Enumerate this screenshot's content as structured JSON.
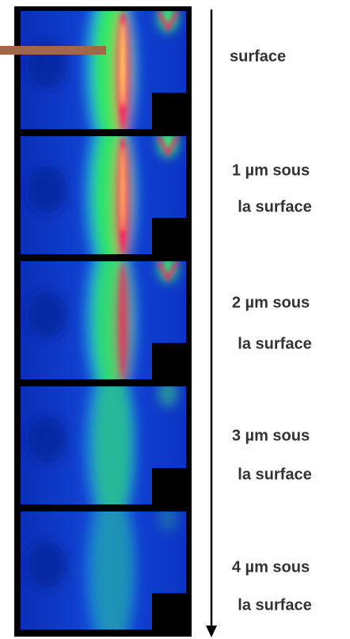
{
  "labels": [
    {
      "lines": [
        "surface"
      ]
    },
    {
      "lines": [
        "1 µm sous",
        "la surface"
      ]
    },
    {
      "lines": [
        "2 µm sous",
        "la surface"
      ]
    },
    {
      "lines": [
        "3 µm sous",
        "la surface"
      ]
    },
    {
      "lines": [
        "4 µm sous",
        "la surface"
      ]
    }
  ]
}
